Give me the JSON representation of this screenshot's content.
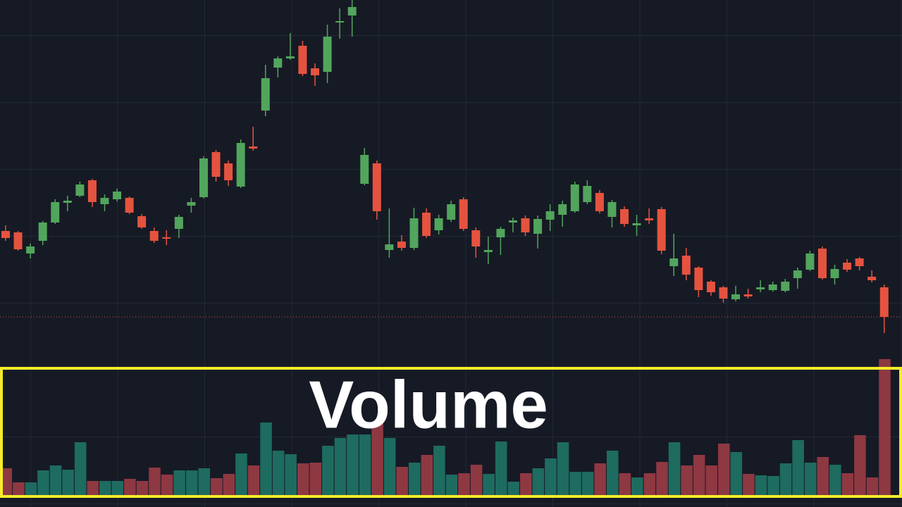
{
  "chart_data": {
    "type": "candlestick",
    "annotation": "Volume",
    "open": [
      392,
      390,
      360,
      378,
      404,
      432,
      442,
      464,
      430,
      437,
      439,
      413,
      392,
      383,
      395,
      428,
      440,
      504,
      488,
      455,
      512,
      563,
      624,
      637,
      655,
      623,
      618,
      688,
      698,
      459,
      488,
      365,
      377,
      368,
      418,
      393,
      408,
      437,
      393,
      362,
      383,
      404,
      410,
      388,
      408,
      415,
      420,
      433,
      446,
      412,
      423,
      400,
      410,
      423,
      342,
      357,
      340,
      320,
      312,
      295,
      302,
      309,
      308,
      307,
      325,
      337,
      367,
      325,
      347,
      353,
      327,
      312
    ],
    "high": [
      400,
      392,
      374,
      406,
      437,
      442,
      462,
      466,
      444,
      452,
      441,
      416,
      397,
      393,
      415,
      439,
      498,
      507,
      492,
      522,
      540,
      628,
      640,
      673,
      662,
      630,
      685,
      708,
      720,
      510,
      492,
      424,
      386,
      425,
      424,
      415,
      435,
      440,
      397,
      384,
      398,
      411,
      414,
      414,
      430,
      435,
      462,
      464,
      450,
      436,
      427,
      415,
      424,
      426,
      388,
      368,
      342,
      322,
      314,
      314,
      310,
      322,
      320,
      324,
      340,
      364,
      370,
      344,
      352,
      355,
      336,
      316
    ],
    "low": [
      378,
      364,
      353,
      372,
      402,
      420,
      440,
      426,
      420,
      434,
      416,
      395,
      375,
      372,
      382,
      418,
      438,
      462,
      456,
      453,
      506,
      555,
      610,
      635,
      612,
      598,
      602,
      665,
      668,
      457,
      408,
      354,
      364,
      365,
      382,
      387,
      405,
      392,
      354,
      345,
      358,
      390,
      385,
      367,
      392,
      398,
      418,
      430,
      417,
      397,
      398,
      385,
      402,
      359,
      328,
      322,
      298,
      300,
      290,
      292,
      296,
      305,
      306,
      305,
      310,
      335,
      323,
      316,
      334,
      336,
      319,
      247
    ],
    "close": [
      382,
      366,
      370,
      404,
      433,
      435,
      458,
      433,
      439,
      448,
      418,
      397,
      378,
      381,
      412,
      433,
      495,
      469,
      464,
      517,
      509,
      609,
      637,
      640,
      615,
      613,
      668,
      690,
      710,
      500,
      420,
      373,
      368,
      410,
      385,
      410,
      430,
      395,
      370,
      365,
      395,
      407,
      390,
      409,
      420,
      430,
      458,
      456,
      420,
      433,
      402,
      403,
      407,
      364,
      353,
      330,
      308,
      305,
      296,
      302,
      299,
      312,
      316,
      320,
      336,
      360,
      325,
      338,
      337,
      342,
      322,
      270
    ],
    "volume": [
      39,
      19,
      19,
      36,
      43,
      37,
      76,
      21,
      21,
      21,
      24,
      21,
      40,
      30,
      36,
      36,
      39,
      25,
      31,
      60,
      43,
      104,
      64,
      59,
      46,
      47,
      71,
      82,
      87,
      87,
      104,
      82,
      41,
      47,
      58,
      71,
      30,
      32,
      44,
      31,
      77,
      20,
      32,
      39,
      53,
      76,
      34,
      34,
      46,
      64,
      32,
      26,
      32,
      48,
      76,
      43,
      58,
      43,
      74,
      62,
      31,
      29,
      28,
      46,
      79,
      47,
      55,
      44,
      32,
      86,
      26,
      194
    ],
    "ylim": [
      0,
      720
    ],
    "volume_ylim": [
      0,
      200
    ],
    "up_color": "#52a55c",
    "down_color": "#e5533f",
    "volume_up_color": "#1e6b60",
    "volume_down_color": "#8e3842"
  }
}
